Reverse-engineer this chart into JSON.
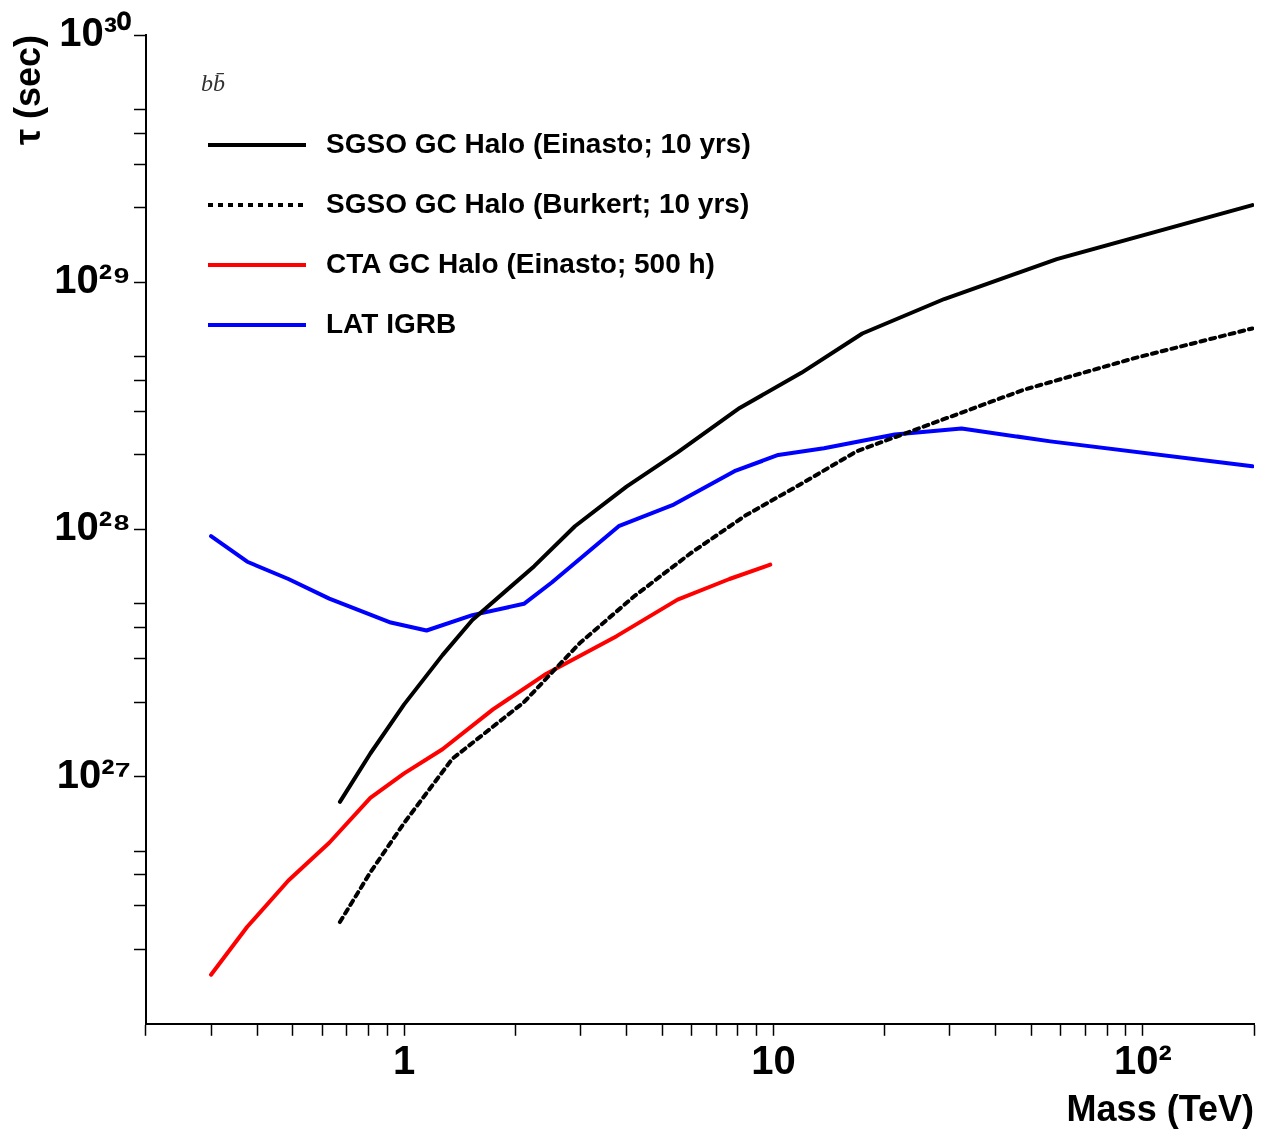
{
  "chart_data": {
    "type": "line",
    "xlabel": "Mass (TeV)",
    "ylabel": "τ (sec)",
    "log": "xy",
    "grid": false,
    "legend": "top left",
    "marker": "none",
    "annotations": [
      "bb̄"
    ],
    "xlim": [
      0.2,
      200
    ],
    "ylim": [
      1e+26,
      1e+30
    ],
    "xticks": [
      {
        "value": 0.2,
        "label": null
      },
      {
        "value": 0.3,
        "label": null
      },
      {
        "value": 0.4,
        "label": null
      },
      {
        "value": 0.5,
        "label": null
      },
      {
        "value": 0.6,
        "label": null
      },
      {
        "value": 0.7,
        "label": null
      },
      {
        "value": 0.8,
        "label": null
      },
      {
        "value": 0.9,
        "label": null
      },
      1,
      {
        "value": 2,
        "label": null
      },
      {
        "value": 3,
        "label": null
      },
      {
        "value": 4,
        "label": null
      },
      {
        "value": 5,
        "label": null
      },
      {
        "value": 6,
        "label": null
      },
      {
        "value": 7,
        "label": null
      },
      {
        "value": 8,
        "label": null
      },
      {
        "value": 9,
        "label": null
      },
      10,
      {
        "value": 20,
        "label": null
      },
      {
        "value": 30,
        "label": null
      },
      {
        "value": 40,
        "label": null
      },
      {
        "value": 50,
        "label": null
      },
      {
        "value": 60,
        "label": null
      },
      {
        "value": 70,
        "label": null
      },
      {
        "value": 80,
        "label": null
      },
      {
        "value": 90,
        "label": null
      },
      {
        "value": 100,
        "label": "10²"
      },
      {
        "value": 200,
        "label": null
      }
    ],
    "yticks": [
      {
        "value": 2e+26,
        "label": null
      },
      {
        "value": 3e+26,
        "label": null
      },
      {
        "value": 4e+26,
        "label": null
      },
      {
        "value": 5e+26,
        "label": null
      },
      {
        "value": 1e+27,
        "label": "10²⁷"
      },
      {
        "value": 2e+27,
        "label": null
      },
      {
        "value": 3e+27,
        "label": null
      },
      {
        "value": 4e+27,
        "label": null
      },
      {
        "value": 5e+27,
        "label": null
      },
      {
        "value": 1e+28,
        "label": "10²⁸"
      },
      {
        "value": 2e+28,
        "label": null
      },
      {
        "value": 3e+28,
        "label": null
      },
      {
        "value": 4e+28,
        "label": null
      },
      {
        "value": 5e+28,
        "label": null
      },
      {
        "value": 1e+29,
        "label": "10²⁹"
      },
      {
        "value": 2e+29,
        "label": null
      },
      {
        "value": 3e+29,
        "label": null
      },
      {
        "value": 4e+29,
        "label": null
      },
      {
        "value": 5e+29,
        "label": null
      },
      {
        "value": 1e+30,
        "label": "10³⁰"
      }
    ],
    "series": [
      {
        "name": "SGSO GC Halo (Einasto; 10 yrs)",
        "color": "#000000",
        "line_style": "solid",
        "x": [
          0.67,
          0.81,
          1,
          1.27,
          1.53,
          2.25,
          2.9,
          4.0,
          5.5,
          8.1,
          11.9,
          17.4,
          29,
          58.5,
          198
        ],
        "values": [
          7.9e+26,
          1.24e+27,
          1.96e+27,
          3.1e+27,
          4.3e+27,
          7.1e+27,
          1.03e+28,
          1.49e+28,
          2.05e+28,
          3.1e+28,
          4.3e+28,
          6.2e+28,
          8.55e+28,
          1.24e+29,
          2.05e+29
        ]
      },
      {
        "name": "SGSO GC Halo (Burkert; 10 yrs)",
        "color": "#000000",
        "line_style": "dotted",
        "x": [
          0.67,
          0.81,
          1,
          1.35,
          2.11,
          2.99,
          4.22,
          5.96,
          8.41,
          11.9,
          16.8,
          26.3,
          47.3,
          94.4,
          198
        ],
        "values": [
          2.58e+26,
          4.1e+26,
          6.5e+26,
          1.18e+27,
          2e+27,
          3.47e+27,
          5.4e+27,
          8e+27,
          1.14e+28,
          1.53e+28,
          2.07e+28,
          2.65e+28,
          3.66e+28,
          4.92e+28,
          6.5e+28
        ]
      },
      {
        "name": "CTA GC Halo (Einasto; 500 h)",
        "color": "#ff0000",
        "line_style": "solid",
        "x": [
          0.3,
          0.376,
          0.486,
          0.627,
          0.81,
          1,
          1.27,
          1.74,
          2.4,
          3.76,
          5.5,
          7.6,
          9.8
        ],
        "values": [
          1.58e+26,
          2.47e+26,
          3.8e+26,
          5.4e+26,
          8.2e+26,
          1.03e+27,
          1.29e+27,
          1.87e+27,
          2.58e+27,
          3.7e+27,
          5.2e+27,
          6.3e+27,
          7.2e+27
        ]
      },
      {
        "name": "LAT IGRB",
        "color": "#0000ff",
        "line_style": "solid",
        "x": [
          0.3,
          0.376,
          0.486,
          0.627,
          0.92,
          1.15,
          1.53,
          2.11,
          2.51,
          3.81,
          5.37,
          7.84,
          10.3,
          13.7,
          21.3,
          32.3,
          56.2,
          198
        ],
        "values": [
          9.4e+27,
          7.4e+27,
          6.3e+27,
          5.25e+27,
          4.2e+27,
          3.9e+27,
          4.5e+27,
          5e+27,
          6.1e+27,
          1.03e+28,
          1.26e+28,
          1.72e+28,
          2e+28,
          2.13e+28,
          2.42e+28,
          2.56e+28,
          2.27e+28,
          1.8e+28
        ]
      }
    ]
  }
}
